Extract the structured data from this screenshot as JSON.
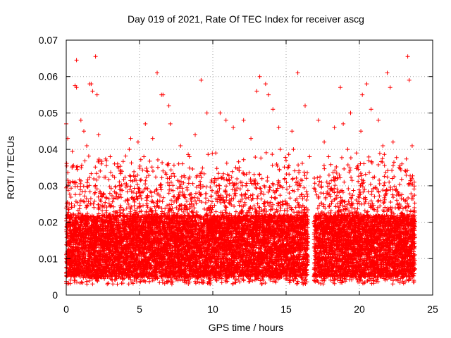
{
  "chart_data": {
    "type": "scatter",
    "title": "Day 019 of 2021, Rate Of TEC Index for receiver ascg",
    "xlabel": "GPS time / hours",
    "ylabel": "ROTI / TECUs",
    "xlim": [
      0,
      25
    ],
    "ylim": [
      0,
      0.07
    ],
    "xticks": [
      0,
      5,
      10,
      15,
      20,
      25
    ],
    "yticks": [
      0,
      0.01,
      0.02,
      0.03,
      0.04,
      0.05,
      0.06,
      0.07
    ],
    "xtick_labels": [
      "0",
      "5",
      "10",
      "15",
      "20",
      "25"
    ],
    "ytick_labels": [
      "0",
      "0.01",
      "0.02",
      "0.03",
      "0.04",
      "0.05",
      "0.06",
      "0.07"
    ],
    "grid": true,
    "marker": "+",
    "color": "#ff0000",
    "series": [
      {
        "name": "ROTI",
        "x": [
          0.3,
          0.4,
          0.7,
          1.0,
          1.6,
          1.8,
          2.0,
          2.2,
          3.0,
          3.5,
          4.4,
          5.3,
          6.2,
          6.6,
          7.1,
          8.4,
          9.2,
          10.5,
          11.4,
          12.1,
          13.2,
          13.6,
          14.1,
          14.6,
          15.4,
          15.8,
          16.6,
          17.6,
          18.3,
          18.7,
          19.2,
          19.8,
          20.2,
          20.5,
          21.3,
          21.9,
          22.3,
          22.7,
          23.3,
          23.6,
          0.0,
          0.1,
          0.2,
          0.5,
          0.6,
          0.7,
          1.2,
          1.4,
          1.7,
          2.1,
          2.4,
          3.3,
          3.8,
          4.3,
          4.9,
          5.4,
          5.9,
          6.5,
          7.0,
          7.8,
          8.8,
          9.6,
          10.2,
          10.9,
          11.8,
          12.6,
          13.0,
          13.8,
          14.5,
          15.0,
          15.5,
          16.3,
          17.2,
          17.9,
          18.9,
          19.4,
          20.1,
          20.8,
          21.6,
          22.1,
          22.9,
          23.4
        ],
        "y": [
          0.031,
          0.035,
          0.0645,
          0.048,
          0.058,
          0.056,
          0.0655,
          0.044,
          0.038,
          0.036,
          0.043,
          0.038,
          0.061,
          0.055,
          0.047,
          0.038,
          0.059,
          0.05,
          0.046,
          0.048,
          0.06,
          0.058,
          0.051,
          0.04,
          0.045,
          0.061,
          0.038,
          0.042,
          0.046,
          0.057,
          0.04,
          0.039,
          0.055,
          0.058,
          0.048,
          0.061,
          0.042,
          0.035,
          0.0655,
          0.041,
          0.047,
          0.043,
          0.025,
          0.022,
          0.0575,
          0.057,
          0.045,
          0.041,
          0.058,
          0.055,
          0.036,
          0.036,
          0.034,
          0.04,
          0.042,
          0.047,
          0.043,
          0.055,
          0.052,
          0.041,
          0.044,
          0.05,
          0.039,
          0.048,
          0.035,
          0.043,
          0.056,
          0.055,
          0.046,
          0.037,
          0.04,
          0.052,
          0.048,
          0.038,
          0.047,
          0.05,
          0.045,
          0.051,
          0.041,
          0.057,
          0.036,
          0.059
        ]
      }
    ],
    "dense_band": {
      "description": "dense cloud of ROTI points across the day",
      "x_range": [
        0,
        23.8
      ],
      "y_core": [
        0.005,
        0.022
      ],
      "y_spread": [
        0.003,
        0.04
      ],
      "sample_interval_hours_approx": 0.0083,
      "data_gap_hours": [
        16.5,
        16.9
      ]
    }
  }
}
